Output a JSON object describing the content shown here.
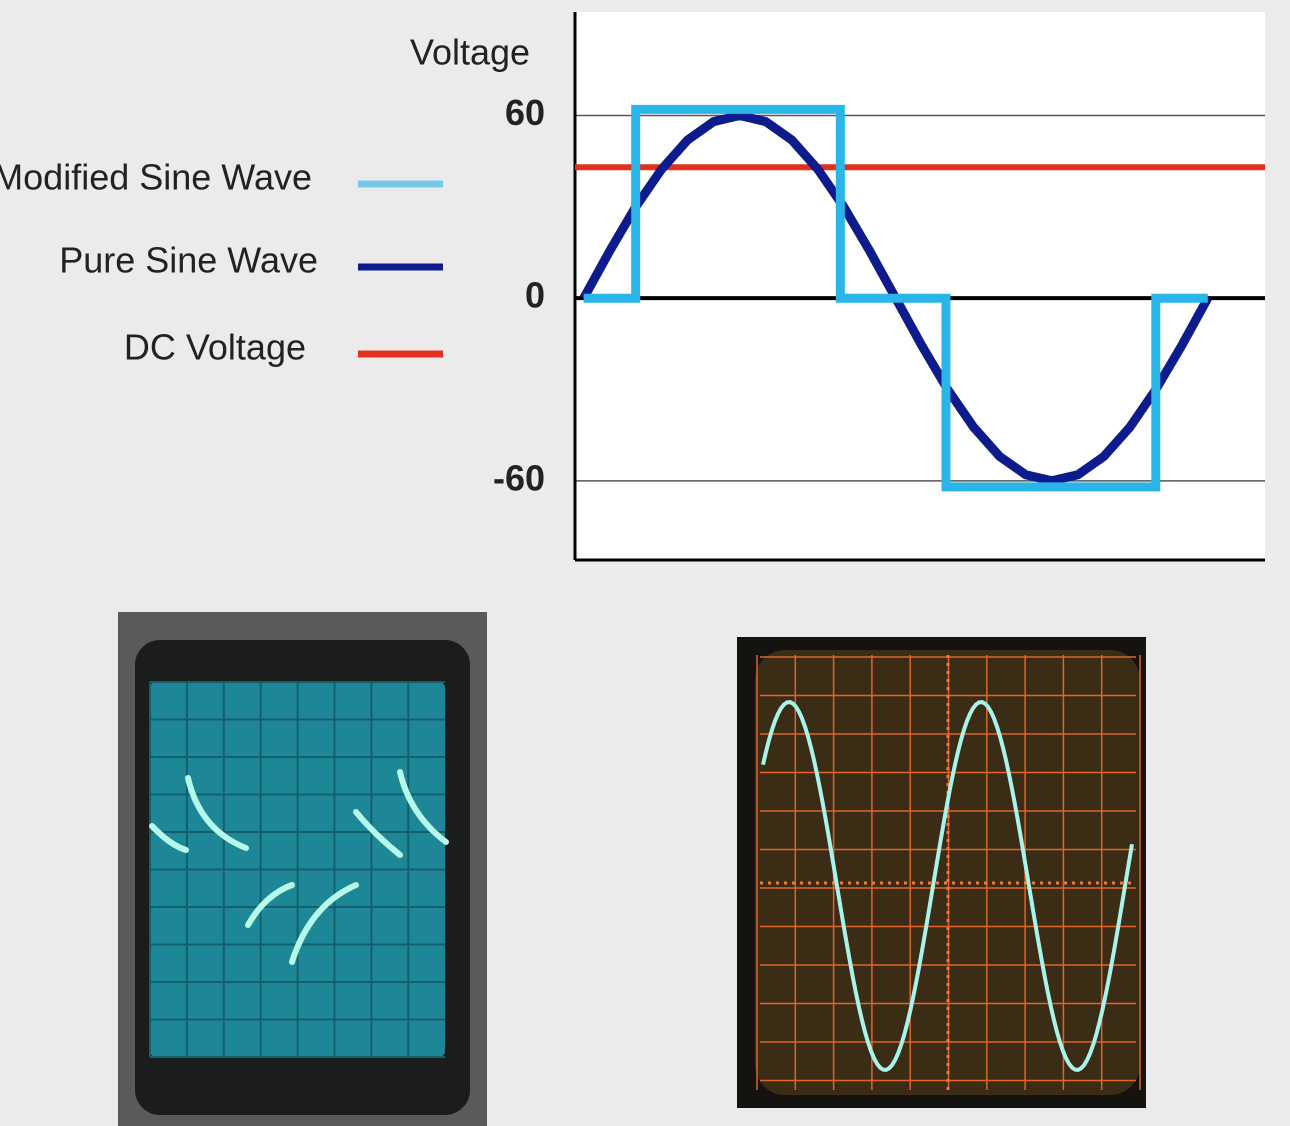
{
  "chart_data": {
    "type": "line",
    "y_label": "Voltage",
    "xlim": [
      -5,
      393
    ],
    "ylim": [
      -86,
      94
    ],
    "yticks": [
      -60,
      0,
      60
    ],
    "series": [
      {
        "name": "Modified Sine Wave",
        "color": "#2ab5e8",
        "x": [
          0,
          30,
          30,
          148,
          148,
          209,
          209,
          330,
          330,
          360
        ],
        "values": [
          0,
          0,
          62,
          62,
          0,
          0,
          -62,
          -62,
          0,
          0
        ]
      },
      {
        "name": "Pure Sine Wave",
        "color": "#0d1b8c",
        "x": [
          0,
          15,
          30,
          45,
          60,
          75,
          90,
          105,
          120,
          135,
          150,
          165,
          180,
          195,
          210,
          225,
          240,
          255,
          270,
          285,
          300,
          315,
          330,
          345,
          360
        ],
        "values": [
          0,
          15.5,
          30,
          42.4,
          52,
          58,
          60,
          58,
          52,
          42.4,
          30,
          15.5,
          0,
          -15.5,
          -30,
          -42.4,
          -52,
          -58,
          -60,
          -58,
          -52,
          -42.4,
          -30,
          -15.5,
          0
        ]
      },
      {
        "name": "DC Voltage",
        "color": "#e0301e",
        "x": [
          -5,
          393
        ],
        "values": [
          43,
          43
        ]
      }
    ]
  }
}
